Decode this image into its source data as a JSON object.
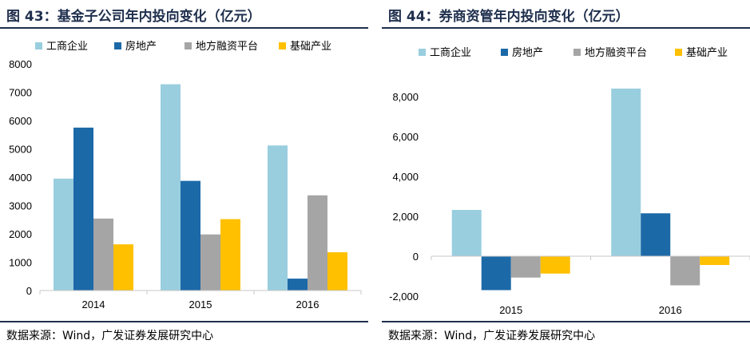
{
  "charts": [
    {
      "id": "left",
      "title": "图 43：基金子公司年内投向变化（亿元）",
      "source": "数据来源：Wind，广发证券发展研究中心",
      "chart_data": {
        "type": "bar",
        "categories": [
          "2014",
          "2015",
          "2016"
        ],
        "series": [
          {
            "name": "工商企业",
            "color": "#99CEDF",
            "values": [
              3950,
              7280,
              5120
            ]
          },
          {
            "name": "房地产",
            "color": "#1C69A8",
            "values": [
              5750,
              3870,
              420
            ]
          },
          {
            "name": "地方融资平台",
            "color": "#A5A5A5",
            "values": [
              2540,
              1980,
              3360
            ]
          },
          {
            "name": "基础产业",
            "color": "#FFC000",
            "values": [
              1630,
              2520,
              1350
            ]
          }
        ],
        "ylim": [
          0,
          8000
        ],
        "yticks": [
          0,
          1000,
          2000,
          3000,
          4000,
          5000,
          6000,
          7000,
          8000
        ],
        "ytick_labels": [
          "0",
          "1000",
          "2000",
          "3000",
          "4000",
          "5000",
          "6000",
          "7000",
          "8000"
        ],
        "grid": false,
        "legend_position": "top"
      }
    },
    {
      "id": "right",
      "title": "图 44：券商资管年内投向变化（亿元）",
      "source": "数据来源：Wind，广发证券发展研究中心",
      "chart_data": {
        "type": "bar",
        "categories": [
          "2015",
          "2016"
        ],
        "series": [
          {
            "name": "工商企业",
            "color": "#99CEDF",
            "values": [
              2320,
              8400
            ]
          },
          {
            "name": "房地产",
            "color": "#1C69A8",
            "values": [
              -1700,
              2150
            ]
          },
          {
            "name": "地方融资平台",
            "color": "#A5A5A5",
            "values": [
              -1070,
              -1460
            ]
          },
          {
            "name": "基础产业",
            "color": "#FFC000",
            "values": [
              -870,
              -440
            ]
          }
        ],
        "ylim": [
          -2000,
          9000
        ],
        "yticks": [
          -2000,
          0,
          2000,
          4000,
          6000,
          8000
        ],
        "ytick_labels": [
          "-2,000",
          "0",
          "2,000",
          "4,000",
          "6,000",
          "8,000"
        ],
        "grid": false,
        "legend_position": "top"
      }
    }
  ]
}
